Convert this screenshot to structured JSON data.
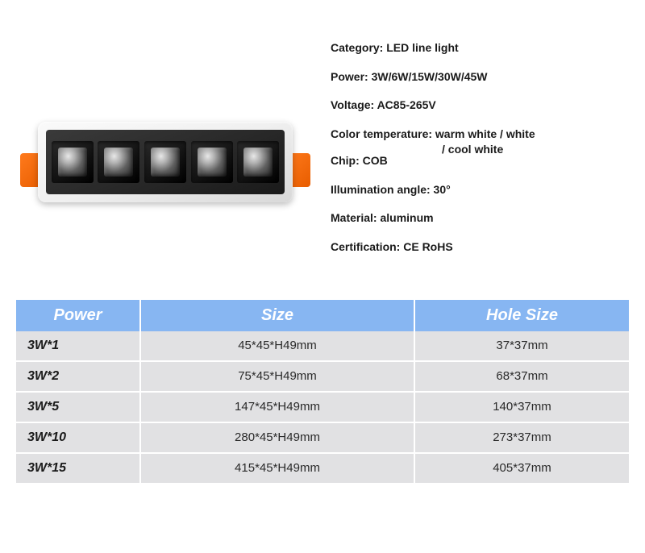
{
  "colors": {
    "header_bg": "#87b6f2",
    "row_bg": "#e1e1e3",
    "header_text": "#ffffff",
    "body_text": "#1a1a1a",
    "clip_color": "#ff7a1c"
  },
  "specs": [
    {
      "label": "Category:",
      "value": " LED line light"
    },
    {
      "label": "Power:",
      "value": " 3W/6W/15W/30W/45W"
    },
    {
      "label": "Voltage:",
      "value": " AC85-265V"
    },
    {
      "label": "Color temperature:",
      "value": " warm white / white",
      "continuation": "/ cool white"
    },
    {
      "label": "Chip:",
      "value": " COB"
    },
    {
      "label": "Illumination angle:",
      "value": " 30°"
    },
    {
      "label": "Material:",
      "value": " aluminum"
    },
    {
      "label": "Certification:",
      "value": " CE RoHS"
    }
  ],
  "table": {
    "headers": {
      "power": "Power",
      "size": "Size",
      "hole": "Hole Size"
    },
    "rows": [
      {
        "power": "3W*1",
        "size": "45*45*H49mm",
        "hole": "37*37mm"
      },
      {
        "power": "3W*2",
        "size": "75*45*H49mm",
        "hole": "68*37mm"
      },
      {
        "power": "3W*5",
        "size": "147*45*H49mm",
        "hole": "140*37mm"
      },
      {
        "power": "3W*10",
        "size": "280*45*H49mm",
        "hole": "273*37mm"
      },
      {
        "power": "3W*15",
        "size": "415*45*H49mm",
        "hole": "405*37mm"
      }
    ]
  },
  "product": {
    "led_count": 5
  }
}
